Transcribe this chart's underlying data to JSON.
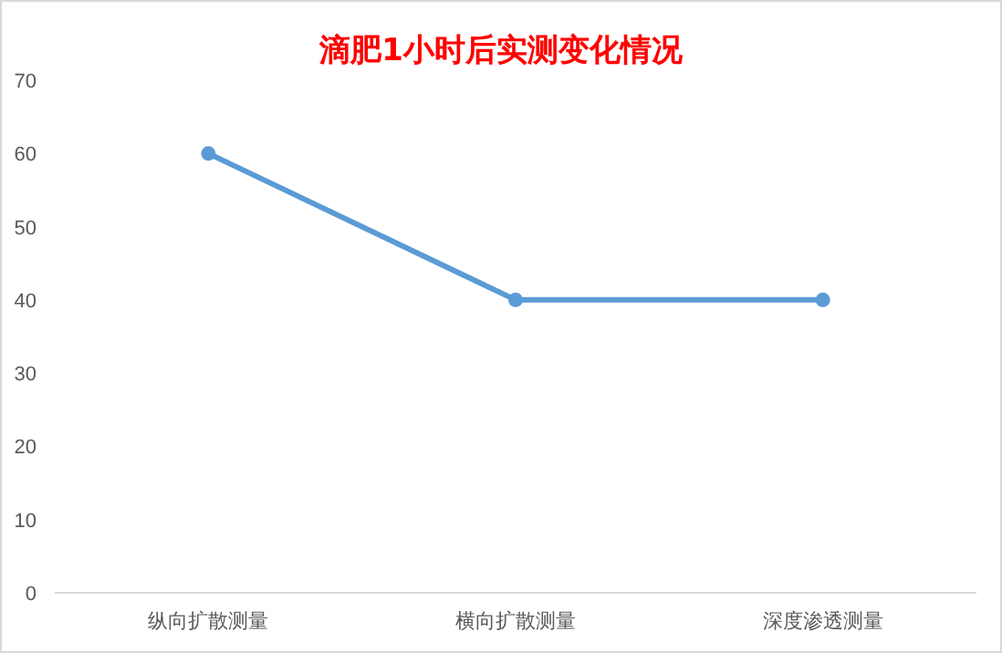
{
  "chart_data": {
    "type": "line",
    "title": "滴肥1小时后实测变化情况",
    "categories": [
      "纵向扩散测量",
      "横向扩散测量",
      "深度渗透测量"
    ],
    "series": [
      {
        "color": "#5b9bd5",
        "values": [
          60,
          40,
          40
        ]
      }
    ],
    "ylim": [
      0,
      70
    ],
    "yticks": [
      0,
      10,
      20,
      30,
      40,
      50,
      60,
      70
    ],
    "grid": false,
    "marker": "circle",
    "line_style": "solid"
  }
}
